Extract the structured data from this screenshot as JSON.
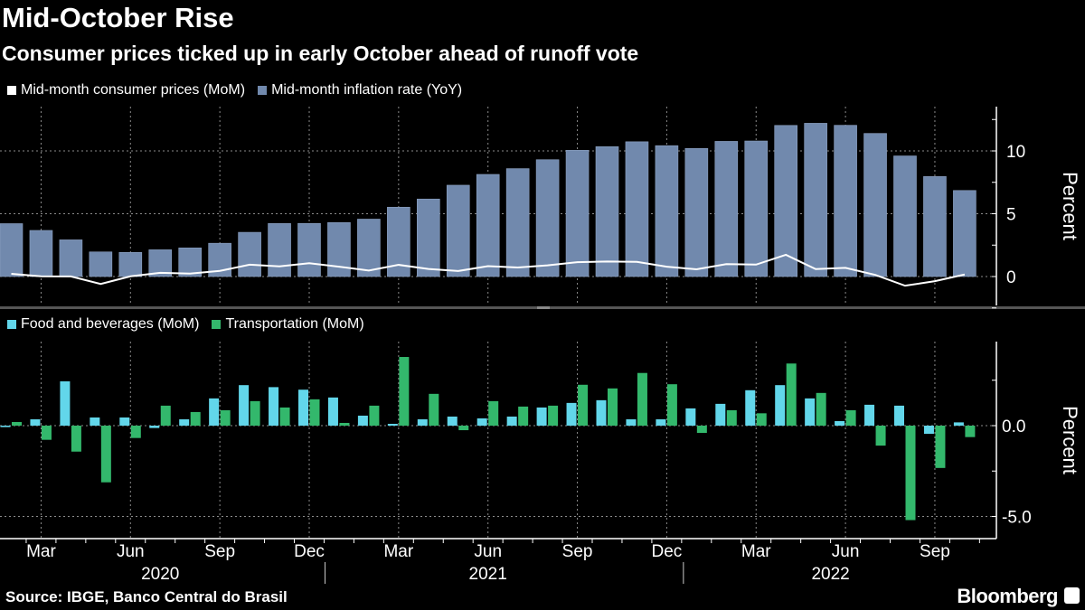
{
  "header": {
    "title": "Mid-October Rise",
    "subtitle": "Consumer prices ticked up in early October ahead of runoff vote"
  },
  "footer": {
    "source": "Source: IBGE, Banco Central do Brasil",
    "logo": "Bloomberg",
    "logo_icon": "bloomberg-chart-icon"
  },
  "colors": {
    "background": "#000000",
    "cpi_mom": "#ffffff",
    "cpi_yoy": "#7189ad",
    "food": "#62d6ea",
    "transport": "#33b86c",
    "grid": "#8a8a8a"
  },
  "chart_data": [
    {
      "type": "bar",
      "panel": "top",
      "legend_placement": "top-left",
      "grid": true,
      "ylabel": "Percent",
      "yaxis_side": "right",
      "ylim": [
        -2,
        13.5
      ],
      "yticks": [
        "0",
        "5",
        "10"
      ],
      "categories": [
        "2020-02",
        "2020-03",
        "2020-04",
        "2020-05",
        "2020-06",
        "2020-07",
        "2020-08",
        "2020-09",
        "2020-10",
        "2020-11",
        "2020-12",
        "2021-01",
        "2021-02",
        "2021-03",
        "2021-04",
        "2021-05",
        "2021-06",
        "2021-07",
        "2021-08",
        "2021-09",
        "2021-10",
        "2021-11",
        "2021-12",
        "2022-01",
        "2022-02",
        "2022-03",
        "2022-04",
        "2022-05",
        "2022-06",
        "2022-07",
        "2022-08",
        "2022-09",
        "2022-10"
      ],
      "series": [
        {
          "name": "Mid-month consumer prices (MoM)",
          "kind": "line",
          "values": [
            0.22,
            0.02,
            0.01,
            -0.59,
            0.02,
            0.3,
            0.23,
            0.45,
            0.94,
            0.81,
            1.06,
            0.78,
            0.48,
            0.93,
            0.6,
            0.44,
            0.83,
            0.72,
            0.89,
            1.14,
            1.2,
            1.17,
            0.78,
            0.58,
            0.99,
            0.95,
            1.73,
            0.59,
            0.69,
            0.13,
            -0.73,
            -0.37,
            0.16
          ]
        },
        {
          "name": "Mid-month inflation rate (YoY)",
          "kind": "bar",
          "values": [
            4.21,
            3.67,
            2.92,
            1.96,
            1.92,
            2.13,
            2.28,
            2.65,
            3.52,
            4.22,
            4.23,
            4.3,
            4.57,
            5.52,
            6.17,
            7.27,
            8.13,
            8.59,
            9.3,
            10.05,
            10.34,
            10.73,
            10.42,
            10.2,
            10.76,
            10.79,
            12.03,
            12.2,
            12.04,
            11.39,
            9.6,
            7.96,
            6.85
          ]
        }
      ]
    },
    {
      "type": "bar",
      "panel": "bottom",
      "legend_placement": "top-left",
      "grid": true,
      "ylabel": "Percent",
      "yaxis_side": "right",
      "ylim": [
        -6.2,
        4.6
      ],
      "yticks": [
        "0.0",
        "-5.0"
      ],
      "categories": [
        "2020-02",
        "2020-03",
        "2020-04",
        "2020-05",
        "2020-06",
        "2020-07",
        "2020-08",
        "2020-09",
        "2020-10",
        "2020-11",
        "2020-12",
        "2021-01",
        "2021-02",
        "2021-03",
        "2021-04",
        "2021-05",
        "2021-06",
        "2021-07",
        "2021-08",
        "2021-09",
        "2021-10",
        "2021-11",
        "2021-12",
        "2022-01",
        "2022-02",
        "2022-03",
        "2022-04",
        "2022-05",
        "2022-06",
        "2022-07",
        "2022-08",
        "2022-09",
        "2022-10"
      ],
      "series": [
        {
          "name": "Food and beverages (MoM)",
          "values": [
            -0.08,
            0.35,
            2.44,
            0.45,
            0.45,
            -0.13,
            0.35,
            1.5,
            2.23,
            2.12,
            1.98,
            1.55,
            0.55,
            0.1,
            0.35,
            0.5,
            0.4,
            0.5,
            1.0,
            1.25,
            1.4,
            0.35,
            0.35,
            0.95,
            1.2,
            1.95,
            2.23,
            1.5,
            0.25,
            1.15,
            1.1,
            -0.45,
            0.18
          ]
        },
        {
          "name": "Transportation (MoM)",
          "values": [
            0.2,
            -0.78,
            -1.43,
            -3.12,
            -0.68,
            1.1,
            0.75,
            0.85,
            1.35,
            1.0,
            1.45,
            0.15,
            1.1,
            3.78,
            1.75,
            -0.25,
            1.35,
            1.05,
            1.1,
            2.25,
            2.05,
            2.9,
            2.28,
            -0.4,
            0.85,
            0.68,
            3.42,
            1.8,
            0.85,
            -1.1,
            -5.2,
            -2.33,
            -0.63
          ]
        }
      ]
    }
  ],
  "xaxis": {
    "month_labels": [
      {
        "label": "Mar",
        "index": 1
      },
      {
        "label": "Jun",
        "index": 4
      },
      {
        "label": "Sep",
        "index": 7
      },
      {
        "label": "Dec",
        "index": 10
      },
      {
        "label": "Mar",
        "index": 13
      },
      {
        "label": "Jun",
        "index": 16
      },
      {
        "label": "Sep",
        "index": 19
      },
      {
        "label": "Dec",
        "index": 22
      },
      {
        "label": "Mar",
        "index": 25
      },
      {
        "label": "Jun",
        "index": 28
      },
      {
        "label": "Sep",
        "index": 31
      }
    ],
    "year_labels": [
      {
        "label": "2020",
        "index": 5
      },
      {
        "label": "2021",
        "index": 16
      },
      {
        "label": "2022",
        "index": 27.5
      }
    ]
  }
}
